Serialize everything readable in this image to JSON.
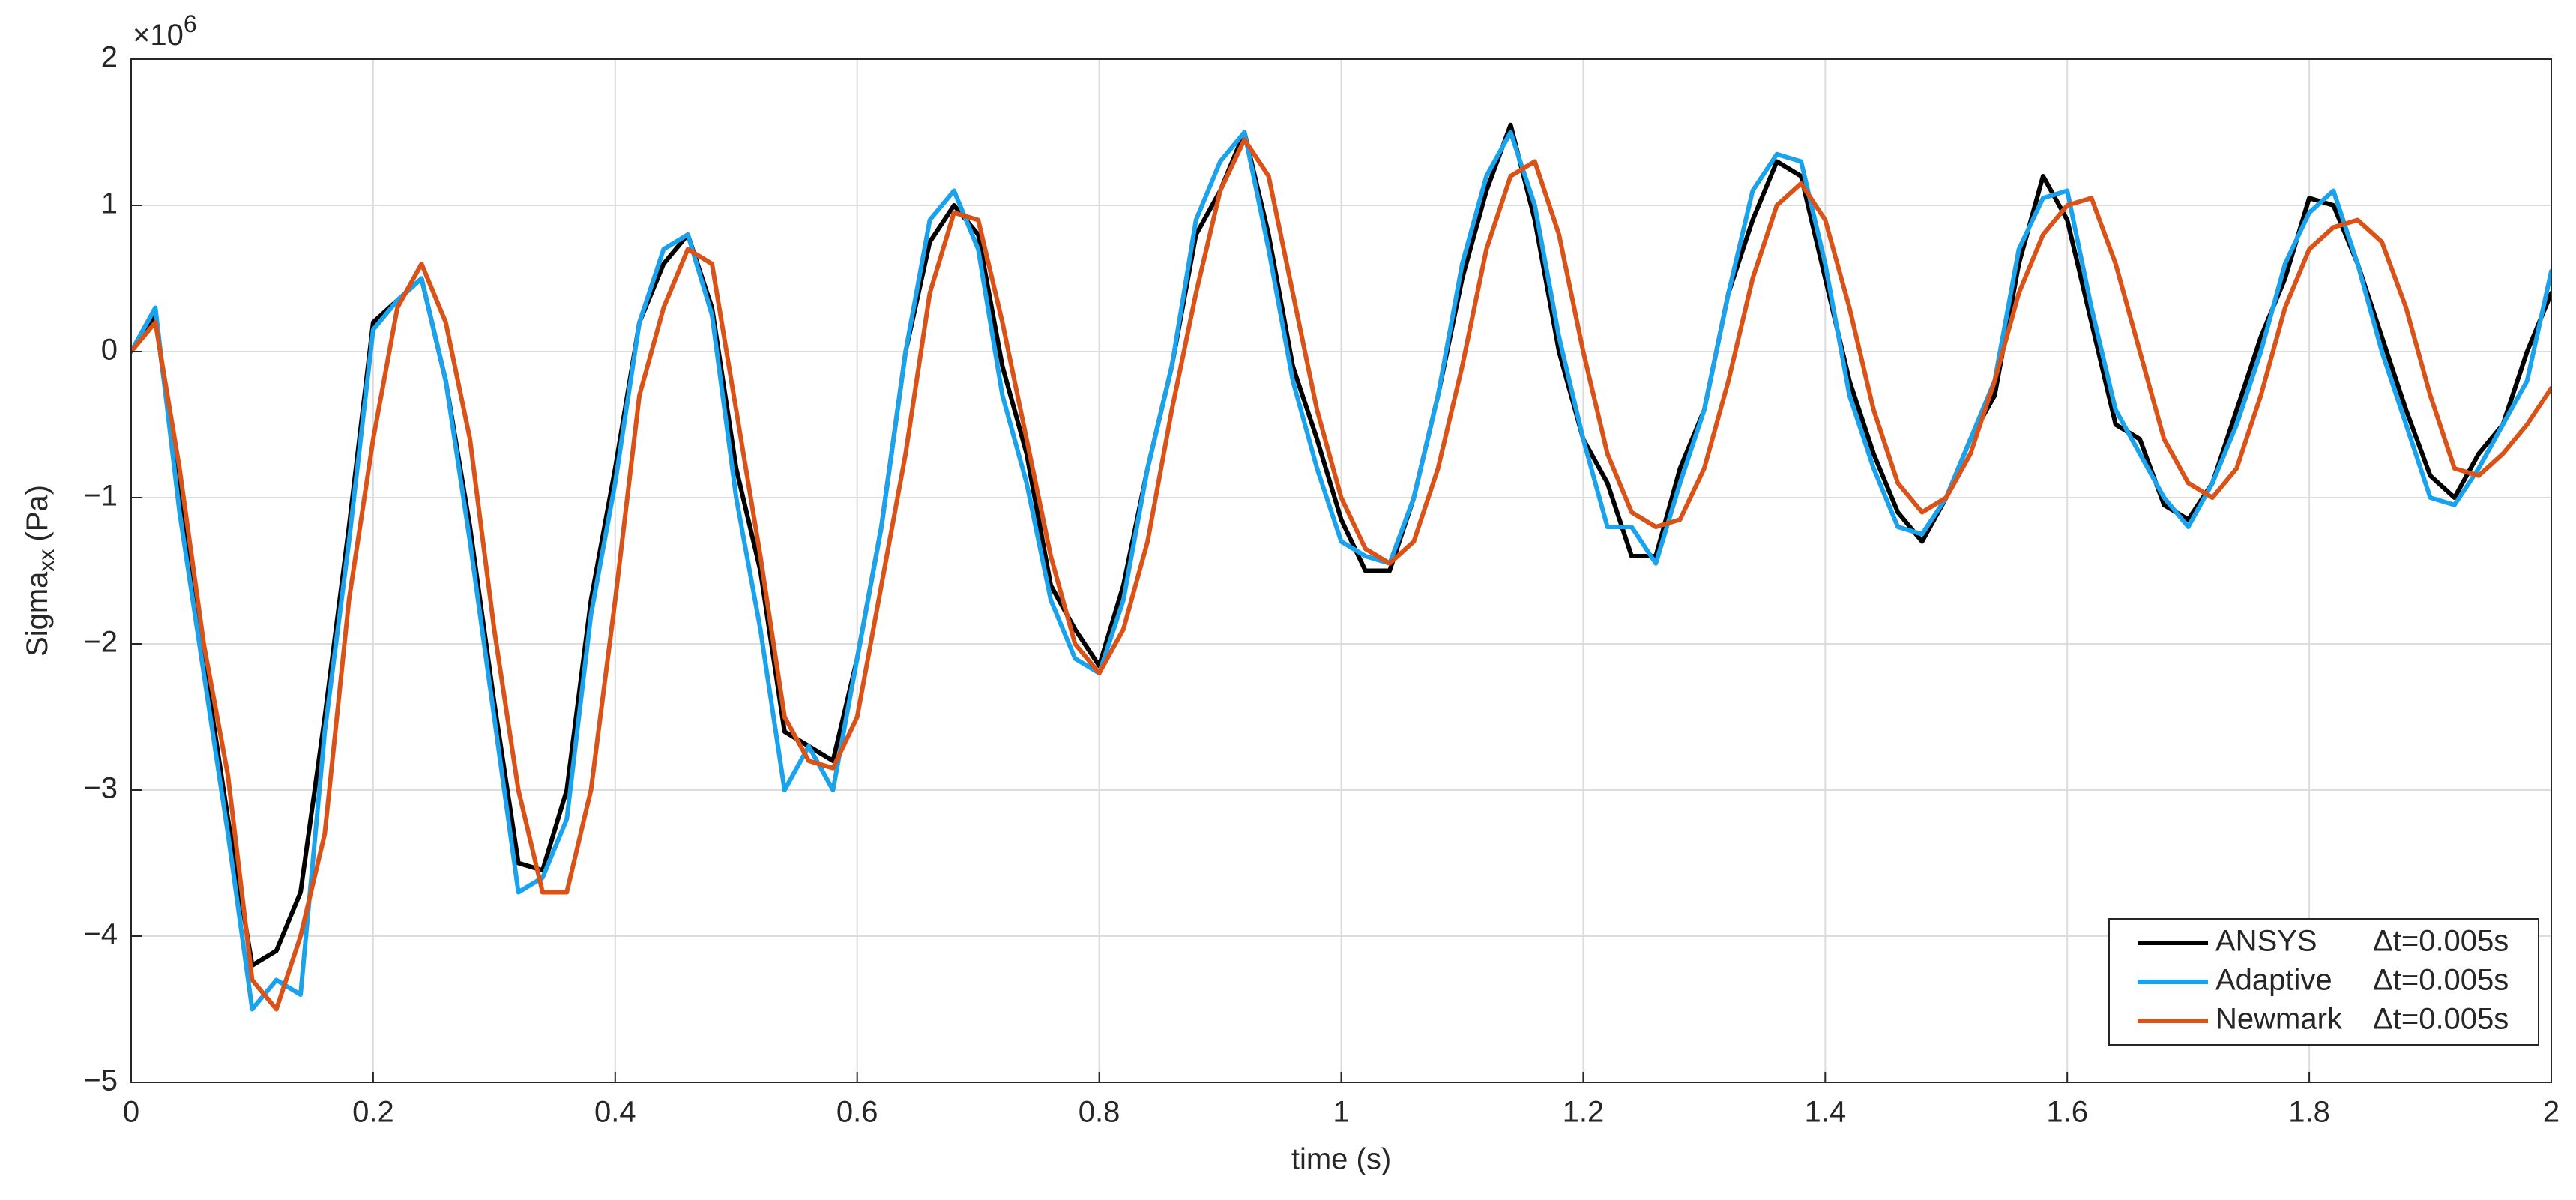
{
  "chart_data": {
    "type": "line",
    "x_label": "time (s)",
    "y_label": {
      "main": "Sigma",
      "subscript": "xx",
      "unit": "(Pa)"
    },
    "y_multiplier": {
      "base": "×10",
      "exponent": "6"
    },
    "x": [
      0,
      0.02,
      0.04,
      0.06,
      0.08,
      0.1,
      0.12,
      0.14,
      0.16,
      0.18,
      0.2,
      0.22,
      0.24,
      0.26,
      0.28,
      0.3,
      0.32,
      0.34,
      0.36,
      0.38,
      0.4,
      0.42,
      0.44,
      0.46,
      0.48,
      0.5,
      0.52,
      0.54,
      0.56,
      0.58,
      0.6,
      0.62,
      0.64,
      0.66,
      0.68,
      0.7,
      0.72,
      0.74,
      0.76,
      0.78,
      0.8,
      0.82,
      0.84,
      0.86,
      0.88,
      0.9,
      0.92,
      0.94,
      0.96,
      0.98,
      1,
      1.02,
      1.04,
      1.06,
      1.08,
      1.1,
      1.12,
      1.14,
      1.16,
      1.18,
      1.2,
      1.22,
      1.24,
      1.26,
      1.28,
      1.3,
      1.32,
      1.34,
      1.36,
      1.38,
      1.4,
      1.42,
      1.44,
      1.46,
      1.48,
      1.5,
      1.52,
      1.54,
      1.56,
      1.58,
      1.6,
      1.62,
      1.64,
      1.66,
      1.68,
      1.7,
      1.72,
      1.74,
      1.76,
      1.78,
      1.8,
      1.82,
      1.84,
      1.86,
      1.88,
      1.9,
      1.92,
      1.94,
      1.96,
      1.98,
      2
    ],
    "series": [
      {
        "name": "ANSYS",
        "step_label": "Δt=0.005s",
        "color": "#000000",
        "values": [
          0,
          0.25,
          -1.0,
          -2.1,
          -3.2,
          -4.2,
          -4.1,
          -3.7,
          -2.5,
          -1.2,
          0.2,
          0.35,
          0.5,
          -0.2,
          -1.2,
          -2.4,
          -3.5,
          -3.55,
          -3.0,
          -1.7,
          -0.8,
          0.2,
          0.6,
          0.8,
          0.3,
          -0.8,
          -1.5,
          -2.6,
          -2.7,
          -2.8,
          -2.1,
          -1.2,
          0.0,
          0.75,
          1.0,
          0.8,
          -0.1,
          -0.7,
          -1.6,
          -1.9,
          -2.15,
          -1.6,
          -0.8,
          -0.1,
          0.8,
          1.1,
          1.5,
          0.8,
          -0.1,
          -0.6,
          -1.15,
          -1.5,
          -1.5,
          -1.0,
          -0.3,
          0.5,
          1.1,
          1.55,
          0.9,
          0.0,
          -0.6,
          -0.9,
          -1.4,
          -1.4,
          -0.8,
          -0.4,
          0.4,
          0.9,
          1.3,
          1.2,
          0.5,
          -0.2,
          -0.7,
          -1.1,
          -1.3,
          -1.0,
          -0.6,
          -0.3,
          0.6,
          1.2,
          0.9,
          0.2,
          -0.5,
          -0.6,
          -1.05,
          -1.15,
          -0.9,
          -0.4,
          0.1,
          0.5,
          1.05,
          1.0,
          0.6,
          0.1,
          -0.4,
          -0.85,
          -1.0,
          -0.7,
          -0.5,
          0.0,
          0.4
        ]
      },
      {
        "name": "Adaptive",
        "step_label": "Δt=0.005s",
        "color": "#1aa3ec",
        "values": [
          0,
          0.3,
          -1.1,
          -2.2,
          -3.3,
          -4.5,
          -4.3,
          -4.4,
          -2.6,
          -1.3,
          0.15,
          0.35,
          0.5,
          -0.2,
          -1.3,
          -2.5,
          -3.7,
          -3.6,
          -3.2,
          -1.8,
          -0.9,
          0.2,
          0.7,
          0.8,
          0.25,
          -1.0,
          -1.9,
          -3.0,
          -2.7,
          -3.0,
          -2.1,
          -1.2,
          0.0,
          0.9,
          1.1,
          0.7,
          -0.3,
          -0.9,
          -1.7,
          -2.1,
          -2.2,
          -1.7,
          -0.8,
          -0.1,
          0.9,
          1.3,
          1.5,
          0.7,
          -0.2,
          -0.8,
          -1.3,
          -1.4,
          -1.45,
          -1.0,
          -0.3,
          0.6,
          1.2,
          1.5,
          1.0,
          0.1,
          -0.6,
          -1.2,
          -1.2,
          -1.45,
          -0.9,
          -0.4,
          0.4,
          1.1,
          1.35,
          1.3,
          0.6,
          -0.3,
          -0.8,
          -1.2,
          -1.25,
          -1.0,
          -0.6,
          -0.2,
          0.7,
          1.05,
          1.1,
          0.3,
          -0.4,
          -0.7,
          -1.0,
          -1.2,
          -0.9,
          -0.5,
          0.0,
          0.6,
          0.95,
          1.1,
          0.6,
          0.0,
          -0.5,
          -1.0,
          -1.05,
          -0.8,
          -0.5,
          -0.2,
          0.55
        ]
      },
      {
        "name": "Newmark",
        "step_label": "Δt=0.005s",
        "color": "#d95319",
        "values": [
          0,
          0.2,
          -0.8,
          -2.0,
          -2.9,
          -4.3,
          -4.5,
          -4.0,
          -3.3,
          -1.7,
          -0.6,
          0.3,
          0.6,
          0.2,
          -0.6,
          -1.9,
          -3.0,
          -3.7,
          -3.7,
          -3.0,
          -1.7,
          -0.3,
          0.3,
          0.7,
          0.6,
          -0.4,
          -1.4,
          -2.5,
          -2.8,
          -2.85,
          -2.5,
          -1.6,
          -0.7,
          0.4,
          0.95,
          0.9,
          0.2,
          -0.6,
          -1.4,
          -2.0,
          -2.2,
          -1.9,
          -1.3,
          -0.4,
          0.4,
          1.1,
          1.45,
          1.2,
          0.4,
          -0.4,
          -1.0,
          -1.35,
          -1.45,
          -1.3,
          -0.8,
          -0.1,
          0.7,
          1.2,
          1.3,
          0.8,
          0.0,
          -0.7,
          -1.1,
          -1.2,
          -1.15,
          -0.8,
          -0.2,
          0.5,
          1.0,
          1.15,
          0.9,
          0.3,
          -0.4,
          -0.9,
          -1.1,
          -1.0,
          -0.7,
          -0.2,
          0.4,
          0.8,
          1.0,
          1.05,
          0.6,
          0.0,
          -0.6,
          -0.9,
          -1.0,
          -0.8,
          -0.3,
          0.3,
          0.7,
          0.85,
          0.9,
          0.75,
          0.3,
          -0.3,
          -0.8,
          -0.85,
          -0.7,
          -0.5,
          -0.25
        ]
      }
    ],
    "xlim": [
      0,
      2
    ],
    "ylim": [
      -5,
      2
    ],
    "xticks": [
      0,
      0.2,
      0.4,
      0.6,
      0.8,
      1,
      1.2,
      1.4,
      1.6,
      1.8,
      2
    ],
    "yticks": [
      {
        "value": -5,
        "label": "−5"
      },
      {
        "value": -4,
        "label": "−4"
      },
      {
        "value": -3,
        "label": "−3"
      },
      {
        "value": -2,
        "label": "−2"
      },
      {
        "value": -1,
        "label": "−1"
      },
      0,
      1,
      2
    ],
    "grid": true,
    "legend": "lower right"
  }
}
